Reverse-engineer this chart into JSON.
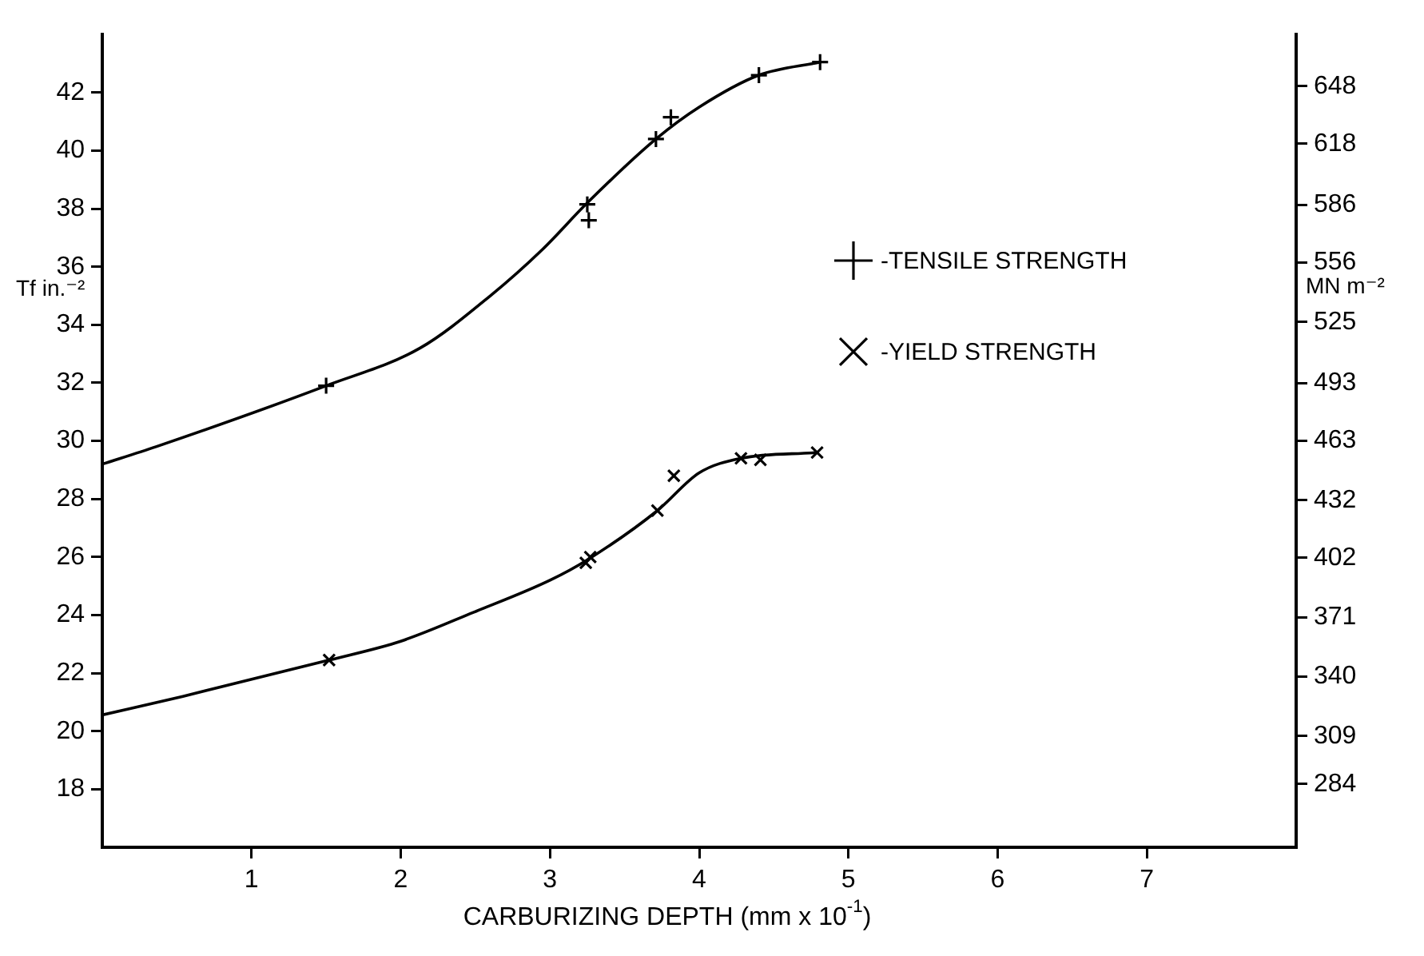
{
  "chart_data": {
    "type": "scatter",
    "xlabel": "CARBURIZING DEPTH (mm x 10$^{-1}$)",
    "ylabel": "Tf in.⁻²",
    "y2label": "MN m⁻²",
    "xlim": [
      0,
      8
    ],
    "xticks": [
      1,
      2,
      3,
      4,
      5,
      6,
      7
    ],
    "ylim": [
      16,
      44
    ],
    "yticks": [
      18,
      20,
      22,
      24,
      26,
      28,
      30,
      32,
      34,
      36,
      38,
      40,
      42
    ],
    "y2lim": [
      251,
      675
    ],
    "y2ticks": [
      284,
      309,
      340,
      371,
      402,
      432,
      463,
      493,
      525,
      556,
      586,
      618,
      648
    ],
    "grid": false,
    "legend": "right",
    "series": [
      {
        "name": "-TENSILE STRENGTH",
        "color": "#000000",
        "marker": "cross",
        "x": [
          1.5,
          3.25,
          3.26,
          3.71,
          3.81,
          4.4,
          4.81
        ],
        "values": [
          31.9,
          38.15,
          37.6,
          40.4,
          41.15,
          42.6,
          43.05
        ]
      },
      {
        "name": "-YIELD STRENGTH",
        "color": "#000000",
        "marker": "cross",
        "x": [
          1.52,
          3.24,
          3.27,
          3.72,
          3.83,
          4.28,
          4.41,
          4.79
        ],
        "values": [
          22.45,
          25.8,
          26.0,
          27.6,
          28.8,
          29.4,
          29.35,
          29.6
        ]
      },
      {
        "type": "line",
        "color": "#000000",
        "marker": "none",
        "line_style": "solid",
        "x": [
          0,
          0.36,
          1.5,
          2.13,
          2.6,
          2.95,
          3.25,
          3.71,
          4.0,
          4.4,
          4.81
        ],
        "values": [
          29.2,
          29.8,
          31.9,
          33.2,
          35.0,
          36.6,
          38.2,
          40.4,
          41.5,
          42.6,
          43.05
        ]
      },
      {
        "type": "line",
        "color": "#000000",
        "marker": "none",
        "line_style": "solid",
        "x": [
          0,
          0.54,
          1.52,
          2.0,
          2.49,
          3.0,
          3.25,
          3.72,
          4.0,
          4.28,
          4.79
        ],
        "values": [
          20.56,
          21.2,
          22.45,
          23.1,
          24.1,
          25.2,
          25.9,
          27.6,
          28.9,
          29.4,
          29.6
        ]
      }
    ]
  }
}
